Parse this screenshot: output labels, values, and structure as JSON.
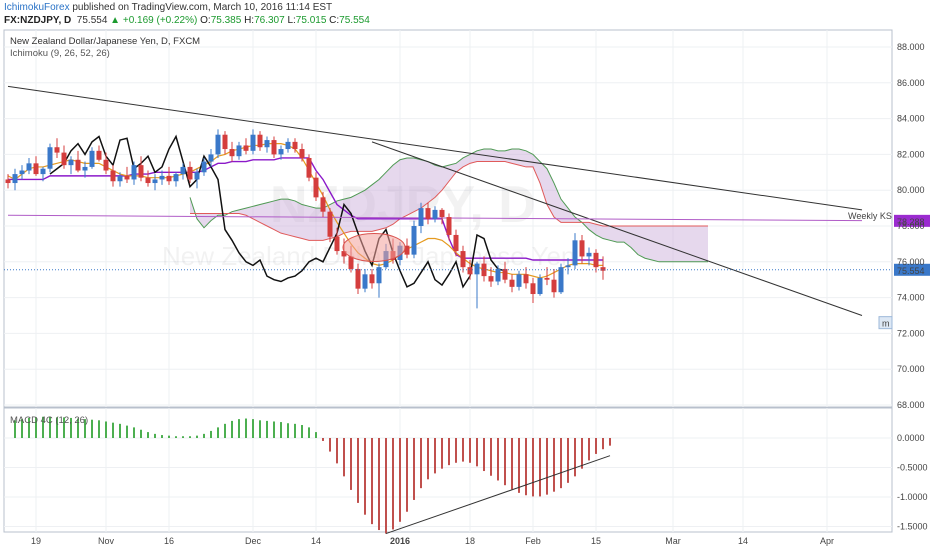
{
  "header": {
    "publisher": "IchimokuForex",
    "published_text": " published on TradingView.com, March 10, 2016 11:14 EST",
    "symbol": "FX:NZDJPY, D",
    "price": "75.554",
    "change": "▲ +0.169 (+0.22%)",
    "o_label": "O:",
    "o_val": "75.385",
    "h_label": "H:",
    "h_val": "76.307",
    "l_label": "L:",
    "l_val": "75.015",
    "c_label": "C:",
    "c_val": "75.554"
  },
  "colors": {
    "bull": "#3a78c9",
    "bear": "#d43d3d",
    "tenkan": "#e59a1f",
    "kijun": "#8b19c9",
    "chikou": "#111111",
    "span_a": "#4f9a54",
    "span_b": "#e05a5a",
    "cloud": "#c8a9d6",
    "macd_pos": "#4caf50",
    "macd_neg": "#c0504d"
  },
  "chart_data": [
    {
      "type": "candlestick",
      "title": "New Zealand Dollar/Japanese Yen, D, FXCM",
      "indicator": "Ichimoku (9, 26, 52, 26)",
      "watermark": "NZDJPY, D",
      "watermark_sub": "New Zealand Dollar / Japanese Yen",
      "x_ticks": [
        "19",
        "Nov",
        "16",
        "Dec",
        "14",
        "2016",
        "18",
        "Feb",
        "15",
        "Mar",
        "14",
        "Apr"
      ],
      "y_ticks": [
        "88.000",
        "86.000",
        "84.000",
        "82.000",
        "80.000",
        "78.000",
        "76.000",
        "74.000",
        "72.000",
        "70.000",
        "68.000"
      ],
      "ylim": [
        67.4,
        88.4
      ],
      "labels": {
        "weekly_ks": "Weekly KS",
        "weekly_ks_value": "78.288",
        "last_price": "75.554",
        "marker": "m"
      },
      "candles": [
        [
          80.6,
          80.9,
          80.1,
          80.4
        ],
        [
          80.4,
          81.2,
          80.0,
          80.9
        ],
        [
          80.9,
          81.4,
          80.6,
          81.1
        ],
        [
          81.1,
          81.8,
          80.9,
          81.5
        ],
        [
          81.5,
          81.9,
          80.8,
          80.9
        ],
        [
          80.9,
          81.3,
          80.5,
          81.2
        ],
        [
          81.2,
          82.6,
          81.0,
          82.4
        ],
        [
          82.4,
          82.9,
          81.8,
          82.1
        ],
        [
          82.1,
          82.5,
          81.2,
          81.4
        ],
        [
          81.4,
          81.9,
          80.9,
          81.7
        ],
        [
          81.7,
          82.2,
          81.0,
          81.1
        ],
        [
          81.1,
          81.6,
          80.7,
          81.3
        ],
        [
          81.3,
          82.4,
          81.2,
          82.2
        ],
        [
          82.2,
          82.5,
          81.6,
          81.7
        ],
        [
          81.7,
          82.1,
          80.9,
          81.1
        ],
        [
          81.1,
          81.4,
          80.2,
          80.5
        ],
        [
          80.5,
          81.0,
          80.2,
          80.8
        ],
        [
          80.8,
          81.3,
          80.4,
          80.6
        ],
        [
          80.6,
          81.6,
          80.3,
          81.4
        ],
        [
          81.4,
          81.9,
          80.5,
          80.7
        ],
        [
          80.7,
          81.1,
          80.2,
          80.4
        ],
        [
          80.4,
          80.9,
          80.0,
          80.6
        ],
        [
          80.6,
          81.1,
          80.3,
          80.8
        ],
        [
          80.8,
          81.3,
          80.3,
          80.5
        ],
        [
          80.5,
          81.0,
          80.2,
          80.9
        ],
        [
          80.9,
          81.5,
          80.6,
          81.3
        ],
        [
          81.3,
          81.6,
          80.4,
          80.6
        ],
        [
          80.6,
          81.2,
          80.1,
          81.0
        ],
        [
          81.0,
          81.8,
          80.8,
          81.6
        ],
        [
          81.6,
          82.3,
          81.3,
          82.0
        ],
        [
          82.0,
          83.4,
          81.8,
          83.1
        ],
        [
          83.1,
          83.3,
          82.0,
          82.3
        ],
        [
          82.3,
          82.7,
          81.6,
          81.9
        ],
        [
          81.9,
          82.7,
          81.7,
          82.5
        ],
        [
          82.5,
          82.9,
          82.0,
          82.2
        ],
        [
          82.2,
          83.4,
          82.0,
          83.1
        ],
        [
          83.1,
          83.3,
          82.2,
          82.4
        ],
        [
          82.4,
          83.0,
          82.1,
          82.8
        ],
        [
          82.8,
          83.0,
          81.8,
          82.0
        ],
        [
          82.0,
          82.5,
          81.7,
          82.3
        ],
        [
          82.3,
          82.9,
          82.1,
          82.7
        ],
        [
          82.7,
          82.9,
          82.1,
          82.3
        ],
        [
          82.3,
          82.6,
          81.6,
          81.8
        ],
        [
          81.8,
          82.0,
          80.5,
          80.7
        ],
        [
          80.7,
          81.0,
          79.4,
          79.6
        ],
        [
          79.6,
          79.9,
          78.5,
          78.8
        ],
        [
          78.8,
          79.0,
          77.1,
          77.4
        ],
        [
          77.4,
          77.9,
          76.4,
          76.6
        ],
        [
          76.6,
          77.3,
          75.9,
          76.3
        ],
        [
          76.3,
          76.9,
          75.4,
          75.6
        ],
        [
          75.6,
          75.9,
          74.2,
          74.5
        ],
        [
          74.5,
          75.6,
          74.3,
          75.3
        ],
        [
          75.3,
          75.6,
          74.5,
          74.8
        ],
        [
          74.8,
          75.9,
          74.0,
          75.7
        ],
        [
          75.7,
          77.0,
          75.6,
          76.6
        ],
        [
          76.6,
          77.3,
          75.9,
          76.1
        ],
        [
          76.1,
          77.1,
          75.8,
          76.9
        ],
        [
          76.9,
          77.3,
          76.2,
          76.4
        ],
        [
          76.4,
          78.3,
          76.2,
          78.0
        ],
        [
          78.0,
          79.3,
          77.6,
          79.0
        ],
        [
          79.0,
          79.3,
          78.1,
          78.4
        ],
        [
          78.4,
          79.1,
          78.2,
          78.9
        ],
        [
          78.9,
          79.0,
          78.1,
          78.5
        ],
        [
          78.5,
          78.7,
          77.2,
          77.5
        ],
        [
          77.5,
          77.8,
          76.3,
          76.6
        ],
        [
          76.6,
          76.9,
          75.4,
          75.7
        ],
        [
          75.7,
          76.1,
          75.0,
          75.3
        ],
        [
          75.3,
          76.0,
          73.4,
          75.9
        ],
        [
          75.9,
          76.3,
          74.9,
          75.2
        ],
        [
          75.2,
          75.7,
          74.6,
          74.9
        ],
        [
          74.9,
          75.8,
          74.7,
          75.6
        ],
        [
          75.6,
          76.0,
          74.8,
          75.0
        ],
        [
          75.0,
          75.3,
          74.3,
          74.6
        ],
        [
          74.6,
          75.5,
          74.4,
          75.3
        ],
        [
          75.3,
          75.7,
          74.5,
          74.8
        ],
        [
          74.8,
          75.1,
          73.7,
          74.2
        ],
        [
          74.2,
          75.3,
          74.1,
          75.1
        ],
        [
          75.1,
          75.7,
          74.7,
          75.0
        ],
        [
          75.0,
          75.6,
          74.0,
          74.3
        ],
        [
          74.3,
          75.9,
          74.2,
          75.7
        ],
        [
          75.7,
          76.2,
          75.3,
          75.8
        ],
        [
          75.8,
          77.6,
          75.6,
          77.2
        ],
        [
          77.2,
          77.5,
          75.9,
          76.3
        ],
        [
          76.3,
          76.8,
          75.8,
          76.5
        ],
        [
          76.5,
          76.7,
          75.4,
          75.7
        ],
        [
          75.7,
          76.3,
          75.0,
          75.5
        ]
      ],
      "tenkan": [
        80.8,
        80.6,
        80.9,
        81.2,
        81.3,
        81.3,
        81.4,
        81.5,
        81.6,
        81.7,
        81.6,
        81.5,
        81.5,
        81.5,
        81.3,
        81.1,
        80.9,
        80.8,
        80.8,
        80.8,
        80.7,
        80.7,
        80.7,
        80.7,
        80.8,
        80.9,
        81.0,
        81.2,
        81.4,
        81.6,
        81.9,
        82.0,
        82.2,
        82.3,
        82.4,
        82.5,
        82.5,
        82.6,
        82.6,
        82.6,
        82.5,
        82.3,
        81.8,
        81.1,
        80.4,
        79.7,
        78.9,
        78.2,
        77.6,
        77.0,
        76.5,
        76.2,
        75.9,
        75.8,
        75.9,
        76.1,
        76.4,
        76.7,
        76.9,
        77.1,
        77.3,
        77.3,
        77.2,
        76.9,
        76.5,
        76.2,
        75.9,
        75.7,
        75.6,
        75.5,
        75.4,
        75.4,
        75.3,
        75.3,
        75.3,
        75.2,
        75.1,
        75.2,
        75.4,
        75.6,
        75.8,
        75.9,
        75.9,
        75.9,
        75.8,
        75.8
      ],
      "kijun": [
        80.6,
        80.6,
        80.6,
        80.6,
        80.6,
        80.6,
        80.8,
        80.8,
        80.8,
        80.8,
        80.8,
        80.8,
        80.8,
        80.8,
        80.8,
        80.8,
        80.8,
        80.8,
        80.9,
        80.9,
        80.9,
        81.0,
        81.0,
        81.0,
        81.0,
        81.0,
        81.0,
        81.0,
        81.1,
        81.3,
        81.5,
        81.5,
        81.6,
        81.6,
        81.6,
        81.7,
        81.7,
        81.7,
        81.7,
        81.8,
        81.8,
        81.8,
        81.8,
        81.8,
        81.1,
        80.6,
        79.9,
        79.2,
        78.9,
        78.6,
        78.4,
        78.4,
        78.4,
        78.4,
        78.4,
        78.4,
        78.4,
        78.4,
        78.4,
        78.4,
        78.4,
        78.4,
        78.4,
        77.3,
        76.4,
        76.2,
        76.2,
        76.2,
        76.2,
        76.2,
        76.2,
        76.2,
        76.2,
        76.2,
        76.2,
        76.1,
        76.1,
        76.1,
        76.1,
        76.1,
        76.1,
        76.1,
        76.1,
        76.1,
        76.1,
        76.1
      ],
      "span_a": [
        79.6,
        78.4,
        77.9,
        78.3,
        78.6,
        78.6,
        78.8,
        78.9,
        79.0,
        79.1,
        79.2,
        79.3,
        79.4,
        79.5,
        79.5,
        79.4,
        79.2,
        79.1,
        79.0,
        79.0,
        79.2,
        79.4,
        79.5,
        79.6,
        79.8,
        80.0,
        80.3,
        80.6,
        81.0,
        81.4,
        81.7,
        81.8,
        81.8,
        81.7,
        81.6,
        81.4,
        81.3,
        81.4,
        81.5,
        81.8,
        82.0,
        82.2,
        82.3,
        82.3,
        82.2,
        82.2,
        82.3,
        82.3,
        82.2,
        82.0,
        81.6,
        81.2,
        80.4,
        79.5,
        79.0,
        78.5,
        78.2,
        77.8,
        77.5,
        77.3,
        77.2,
        77.1,
        77.1,
        76.8,
        76.4,
        76.2,
        76.1,
        76.0,
        76.0,
        76.0,
        76.0,
        76.0,
        76.0,
        76.0,
        76.0
      ],
      "span_b": [
        78.7,
        78.7,
        78.7,
        78.7,
        78.7,
        78.7,
        78.7,
        78.7,
        78.6,
        78.4,
        78.2,
        78.0,
        77.8,
        77.6,
        77.5,
        77.4,
        77.3,
        77.2,
        77.2,
        77.2,
        77.3,
        77.4,
        77.6,
        77.7,
        77.7,
        77.7,
        77.7,
        77.8,
        77.9,
        78.1,
        78.4,
        78.6,
        78.8,
        79.0,
        79.3,
        79.6,
        80.0,
        80.5,
        81.0,
        81.3,
        81.5,
        81.6,
        81.6,
        81.6,
        81.6,
        81.6,
        81.5,
        81.4,
        81.3,
        81.3,
        80.4,
        79.2,
        78.5,
        78.2,
        78.2,
        78.2,
        78.2,
        78.2,
        78.1,
        78.0,
        78.0,
        78.0,
        78.0,
        78.0,
        78.0,
        78.0,
        78.0,
        78.0,
        78.0,
        78.0,
        78.0,
        78.0,
        78.0,
        78.0,
        78.0
      ],
      "chikou": [
        80.9,
        81.2,
        81.5,
        82.2,
        82.6,
        82.0,
        82.7,
        83.0,
        81.9,
        81.4,
        82.8,
        82.9,
        81.2,
        81.5,
        81.9,
        81.0,
        81.3,
        82.3,
        83.0,
        81.6,
        80.2,
        80.6,
        81.9,
        81.3,
        80.6,
        77.8,
        77.2,
        76.5,
        76.0,
        75.8,
        76.1,
        75.2,
        75.0,
        74.9,
        75.1,
        75.2,
        75.5,
        76.0,
        76.2,
        76.0,
        76.8,
        77.6,
        79.2,
        78.7,
        77.6,
        76.6,
        75.8,
        77.3,
        77.8,
        76.5,
        75.5,
        74.6,
        74.8,
        75.4,
        76.0,
        75.0,
        74.7,
        75.3,
        76.0,
        74.6,
        75.2,
        77.5,
        77.3,
        76.1,
        75.6,
        75.5
      ],
      "trendlines": [
        {
          "from": [
            0,
            85.8
          ],
          "to": [
            122,
            78.9
          ]
        },
        {
          "from": [
            52,
            82.7
          ],
          "to": [
            122,
            73.0
          ]
        },
        {
          "from": [
            0,
            78.6
          ],
          "to": [
            122,
            78.3
          ]
        }
      ]
    },
    {
      "type": "bar",
      "indicator": "MACD 4C (12, 26)",
      "y_ticks": [
        "0.0000",
        "-0.5000",
        "-1.0000",
        "-1.5000"
      ],
      "ylim": [
        -1.65,
        0.3
      ],
      "start_index": 1,
      "values": [
        0.3,
        0.32,
        0.34,
        0.35,
        0.36,
        0.36,
        0.35,
        0.35,
        0.34,
        0.33,
        0.32,
        0.31,
        0.3,
        0.28,
        0.26,
        0.24,
        0.21,
        0.18,
        0.14,
        0.1,
        0.07,
        0.05,
        0.04,
        0.03,
        0.03,
        0.03,
        0.04,
        0.07,
        0.12,
        0.18,
        0.24,
        0.29,
        0.32,
        0.33,
        0.32,
        0.3,
        0.29,
        0.28,
        0.27,
        0.25,
        0.24,
        0.22,
        0.18,
        0.1,
        -0.05,
        -0.23,
        -0.43,
        -0.65,
        -0.88,
        -1.1,
        -1.3,
        -1.46,
        -1.56,
        -1.62,
        -1.55,
        -1.42,
        -1.25,
        -1.05,
        -0.85,
        -0.7,
        -0.6,
        -0.52,
        -0.46,
        -0.42,
        -0.4,
        -0.42,
        -0.48,
        -0.56,
        -0.64,
        -0.72,
        -0.8,
        -0.87,
        -0.93,
        -0.97,
        -0.99,
        -0.99,
        -0.96,
        -0.91,
        -0.85,
        -0.76,
        -0.65,
        -0.52,
        -0.38,
        -0.27,
        -0.19,
        -0.13
      ],
      "trendline": {
        "from": [
          54,
          -1.62
        ],
        "to": [
          86,
          -0.3
        ]
      }
    }
  ]
}
